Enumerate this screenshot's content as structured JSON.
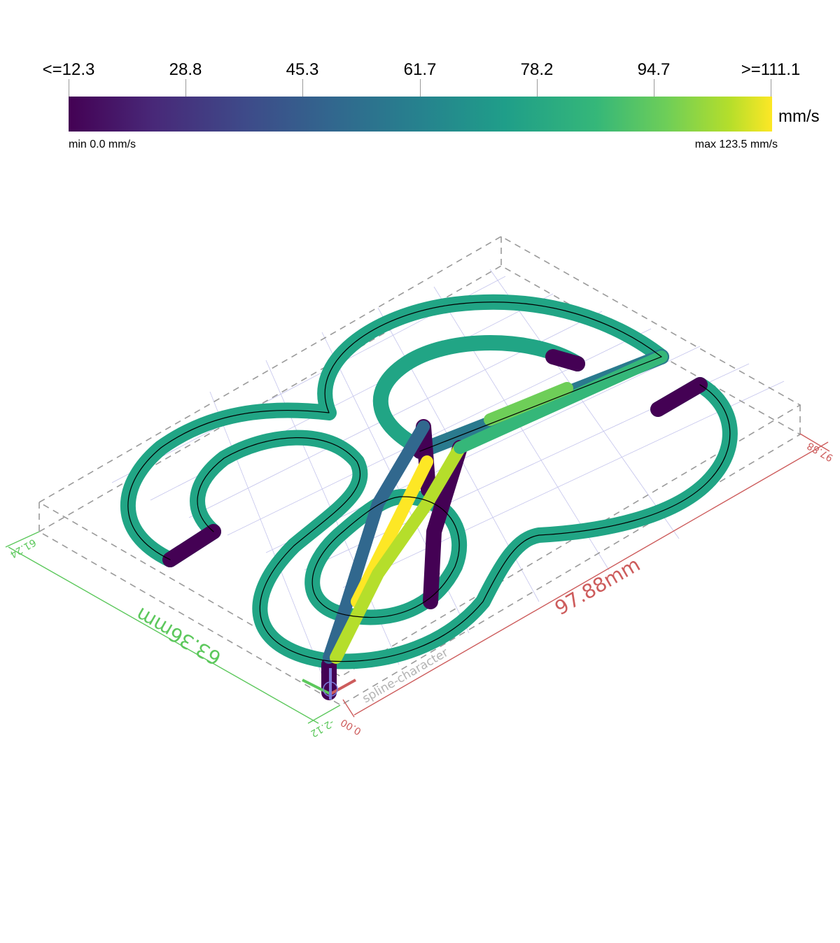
{
  "colorbar": {
    "ticks": [
      "<=12.3",
      "28.8",
      "45.3",
      "61.7",
      "78.2",
      "94.7",
      ">=111.1"
    ],
    "unit": "mm/s",
    "min_label": "min 0.0 mm/s",
    "max_label": "max 123.5 mm/s",
    "colormap": [
      "#440154",
      "#482878",
      "#3e4a89",
      "#31688e",
      "#26828e",
      "#1f9e89",
      "#35b779",
      "#6ece58",
      "#b5de2b",
      "#fde725"
    ]
  },
  "dimensions": {
    "x_length": "97.88mm",
    "y_length": "63.36mm",
    "x_min": "0.00",
    "x_max": "97.88",
    "y_min": "-2.12",
    "y_max": "61.24"
  },
  "object_label": "spline-character",
  "axis_colors": {
    "x": "#cd5c5c",
    "y": "#5cc85c",
    "z": "#7b7bd8"
  },
  "path_colors": {
    "slow": "#440154",
    "mid": "#31688e",
    "fast": "#21a585",
    "peak": "#fde725"
  }
}
